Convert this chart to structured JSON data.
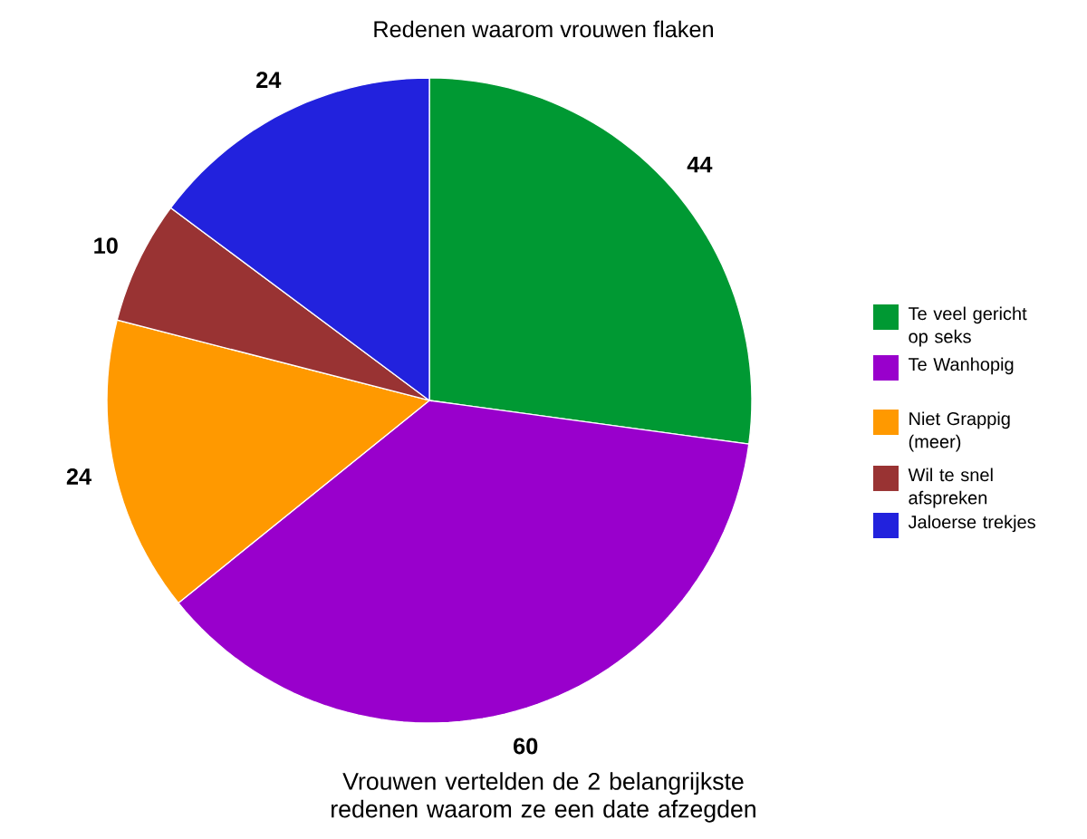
{
  "chart_data": {
    "type": "pie",
    "title": "Redenen waarom vrouwen flaken",
    "categories": [
      "Te veel gericht op seks",
      "Te Wanhopig",
      "Niet Grappig (meer)",
      "Wil te snel afspreken",
      "Jaloerse trekjes"
    ],
    "values": [
      44,
      60,
      24,
      10,
      24
    ],
    "colors": [
      "#009933",
      "#9900cc",
      "#ff9900",
      "#993333",
      "#2222dd"
    ],
    "data_labels": true,
    "legend": "right",
    "annotations": [
      "Vrouwen vertelden de 2 belangrijkste redenen waarom ze een date afzegden"
    ]
  }
}
